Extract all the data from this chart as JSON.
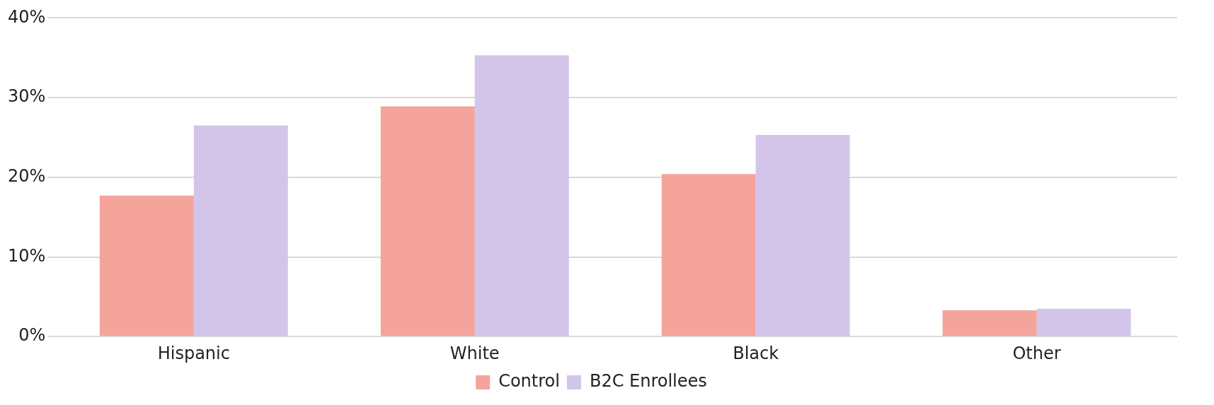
{
  "chart_data": {
    "type": "bar",
    "categories": [
      "Hispanic",
      "White",
      "Black",
      "Other"
    ],
    "series": [
      {
        "name": "Control",
        "color": "#f4a49b",
        "values": [
          17.7,
          28.9,
          20.4,
          3.3
        ]
      },
      {
        "name": "B2C Enrollees",
        "color": "#d3c5ea",
        "values": [
          26.5,
          35.3,
          25.3,
          3.5
        ]
      }
    ],
    "ylim": [
      0,
      40
    ],
    "yticks": [
      {
        "value": 0,
        "label": "0%"
      },
      {
        "value": 10,
        "label": "10%"
      },
      {
        "value": 20,
        "label": "20%"
      },
      {
        "value": 30,
        "label": "30%"
      },
      {
        "value": 40,
        "label": "40%"
      }
    ],
    "grid": "y",
    "legend": "bottom"
  }
}
